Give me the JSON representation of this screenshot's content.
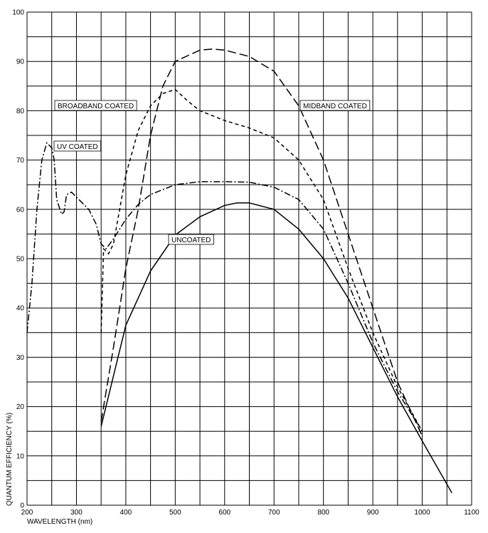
{
  "chart_data": {
    "type": "line",
    "xlabel": "WAVELENGTH (nm)",
    "ylabel": "QUANTUM EFFICIENCY (%)",
    "xlim": [
      200,
      1100
    ],
    "ylim": [
      0,
      100
    ],
    "xticks": [
      200,
      300,
      400,
      500,
      600,
      700,
      800,
      900,
      1000,
      1100
    ],
    "yticks": [
      0,
      10,
      20,
      30,
      40,
      50,
      60,
      70,
      80,
      90,
      100
    ],
    "xminor": [
      250,
      350,
      450,
      550,
      650,
      750,
      850,
      950,
      1050
    ],
    "yminor": [
      5,
      15,
      25,
      35,
      45,
      55,
      65,
      75,
      85,
      95
    ],
    "grid": true,
    "series": [
      {
        "name": "UNCOATED",
        "color": "#000000",
        "linestyle": "solid",
        "x": [
          350,
          400,
          450,
          500,
          550,
          600,
          625,
          650,
          700,
          750,
          800,
          850,
          900,
          950,
          1000,
          1060
        ],
        "values": [
          16,
          36.5,
          47.5,
          54.8,
          58.5,
          60.8,
          61.3,
          61.3,
          60,
          56,
          50,
          42,
          32,
          22,
          13,
          2.5
        ]
      },
      {
        "name": "MIDBAND COATED",
        "color": "#000000",
        "linestyle": "long-dash",
        "x": [
          350,
          375,
          400,
          425,
          450,
          475,
          500,
          550,
          575,
          600,
          650,
          700,
          750,
          800,
          850,
          900,
          950,
          1000
        ],
        "values": [
          17,
          32,
          48,
          60,
          75,
          85,
          90,
          92.3,
          92.5,
          92.3,
          91,
          88,
          81,
          70,
          55,
          40,
          25,
          14
        ]
      },
      {
        "name": "BROADBAND COATED",
        "color": "#000000",
        "linestyle": "short-dash",
        "x": [
          350,
          355,
          365,
          375,
          400,
          425,
          450,
          475,
          500,
          525,
          550,
          600,
          650,
          700,
          750,
          800,
          850,
          900,
          950,
          1000
        ],
        "values": [
          35,
          52,
          51,
          53,
          67,
          76,
          81,
          83.5,
          84.3,
          82,
          80,
          78,
          76.5,
          74.5,
          70,
          62,
          48,
          35,
          24,
          15
        ]
      },
      {
        "name": "UV COATED",
        "color": "#000000",
        "linestyle": "dash-dot",
        "x": [
          200,
          210,
          220,
          230,
          240,
          250,
          255,
          260,
          270,
          275,
          280,
          290,
          300,
          325,
          340,
          350,
          360,
          375,
          400,
          425,
          450,
          500,
          550,
          600,
          650,
          700,
          750,
          800,
          850,
          900,
          950,
          1000
        ],
        "values": [
          35,
          45,
          60,
          70,
          73.5,
          72.5,
          70,
          62,
          59,
          59.5,
          63,
          63.5,
          62.5,
          60,
          57,
          53,
          52,
          54,
          58,
          61,
          63,
          65,
          65.6,
          65.6,
          65.5,
          64.5,
          62,
          56,
          45,
          33,
          23,
          15
        ]
      }
    ]
  }
}
